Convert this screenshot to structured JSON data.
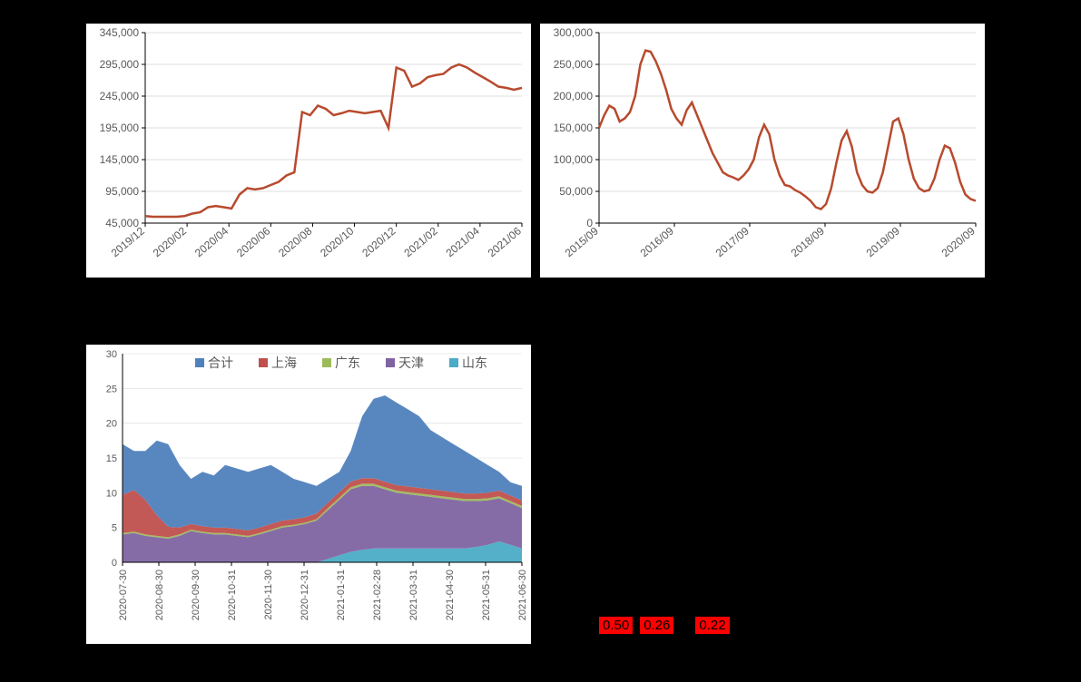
{
  "chart1": {
    "type": "line",
    "title": "",
    "line_color": "#b84a2e",
    "line_width": 2.5,
    "background_color": "#ffffff",
    "grid_color": "#bfbfbf",
    "axis_color": "#000000",
    "tick_fontsize": 12,
    "tick_color": "#595959",
    "ylim": [
      45000,
      345000
    ],
    "ytick_step": 50000,
    "ytick_labels": [
      "45,000",
      "95,000",
      "145,000",
      "195,000",
      "245,000",
      "295,000",
      "345,000"
    ],
    "x_labels": [
      "2019/12",
      "2020/02",
      "2020/04",
      "2020/06",
      "2020/08",
      "2020/10",
      "2020/12",
      "2021/02",
      "2021/04",
      "2021/06"
    ],
    "values": [
      56000,
      55000,
      55000,
      55000,
      55000,
      56000,
      60000,
      62000,
      70000,
      72000,
      70000,
      68000,
      90000,
      100000,
      98000,
      100000,
      105000,
      110000,
      120000,
      125000,
      220000,
      215000,
      230000,
      225000,
      215000,
      218000,
      222000,
      220000,
      218000,
      220000,
      222000,
      195000,
      290000,
      285000,
      260000,
      265000,
      275000,
      278000,
      280000,
      290000,
      295000,
      290000,
      282000,
      275000,
      268000,
      260000,
      258000,
      255000,
      258000
    ]
  },
  "chart2": {
    "type": "line",
    "title": "",
    "line_color": "#b84a2e",
    "line_width": 2.5,
    "background_color": "#ffffff",
    "grid_color": "#bfbfbf",
    "axis_color": "#000000",
    "tick_fontsize": 12,
    "tick_color": "#595959",
    "ylim": [
      0,
      300000
    ],
    "ytick_step": 50000,
    "ytick_labels": [
      "0",
      "50,000",
      "100,000",
      "150,000",
      "200,000",
      "250,000",
      "300,000"
    ],
    "x_labels": [
      "2015/09",
      "2016/09",
      "2017/09",
      "2018/09",
      "2019/09",
      "2020/09"
    ],
    "values": [
      150000,
      170000,
      185000,
      180000,
      160000,
      165000,
      175000,
      200000,
      250000,
      272000,
      270000,
      255000,
      235000,
      210000,
      180000,
      165000,
      155000,
      178000,
      190000,
      170000,
      150000,
      130000,
      110000,
      95000,
      80000,
      75000,
      72000,
      68000,
      75000,
      85000,
      100000,
      135000,
      155000,
      140000,
      100000,
      75000,
      60000,
      58000,
      52000,
      48000,
      42000,
      35000,
      25000,
      22000,
      30000,
      55000,
      95000,
      130000,
      145000,
      120000,
      80000,
      60000,
      50000,
      48000,
      55000,
      80000,
      120000,
      160000,
      165000,
      140000,
      100000,
      70000,
      55000,
      50000,
      52000,
      70000,
      100000,
      122000,
      118000,
      95000,
      65000,
      45000,
      38000,
      35000
    ]
  },
  "chart3": {
    "type": "area",
    "background_color": "#ffffff",
    "grid_color": "#d9d9d9",
    "axis_color": "#000000",
    "tick_fontsize": 11,
    "tick_color": "#595959",
    "legend_fontsize": 14,
    "ylim": [
      0,
      30
    ],
    "ytick_step": 5,
    "ytick_labels": [
      "0",
      "5",
      "10",
      "15",
      "20",
      "25",
      "30"
    ],
    "x_labels": [
      "2020-07-30",
      "2020-08-30",
      "2020-09-30",
      "2020-10-31",
      "2020-11-30",
      "2020-12-31",
      "2021-01-31",
      "2021-02-28",
      "2021-03-31",
      "2021-04-30",
      "2021-05-31",
      "2021-06-30"
    ],
    "legend": [
      {
        "label": "合计",
        "color": "#4f81bd"
      },
      {
        "label": "上海",
        "color": "#c0504d"
      },
      {
        "label": "广东",
        "color": "#9bbb59"
      },
      {
        "label": "天津",
        "color": "#8064a2"
      },
      {
        "label": "山东",
        "color": "#4bacc6"
      }
    ],
    "series": {
      "shandong": [
        0,
        0,
        0,
        0,
        0,
        0,
        0,
        0,
        0,
        0,
        0,
        0,
        0,
        0,
        0,
        0,
        0,
        0,
        0.5,
        1,
        1.5,
        1.8,
        2,
        2,
        2,
        2,
        2,
        2,
        2,
        2,
        2,
        2.2,
        2.5,
        3,
        2.5,
        2
      ],
      "tianjin": [
        4,
        4.2,
        3.8,
        3.6,
        3.4,
        3.8,
        4.5,
        4.2,
        4,
        4,
        3.8,
        3.6,
        4,
        4.5,
        5,
        5.2,
        5.5,
        6,
        7,
        8,
        9,
        9.2,
        9,
        8.5,
        8,
        7.8,
        7.6,
        7.4,
        7.2,
        7,
        6.8,
        6.6,
        6.4,
        6.2,
        6,
        5.8
      ],
      "guangdong": [
        0.2,
        0.2,
        0.2,
        0.2,
        0.2,
        0.2,
        0.2,
        0.2,
        0.2,
        0.2,
        0.2,
        0.2,
        0.2,
        0.2,
        0.2,
        0.2,
        0.2,
        0.2,
        0.3,
        0.3,
        0.3,
        0.3,
        0.3,
        0.3,
        0.3,
        0.3,
        0.3,
        0.3,
        0.3,
        0.3,
        0.3,
        0.3,
        0.3,
        0.3,
        0.3,
        0.3
      ],
      "shanghai": [
        5.5,
        6,
        5,
        3,
        1.5,
        1,
        0.8,
        0.8,
        0.8,
        0.8,
        0.8,
        0.8,
        0.8,
        0.8,
        0.8,
        0.8,
        0.8,
        0.8,
        0.8,
        0.8,
        0.8,
        0.8,
        0.8,
        0.8,
        0.8,
        0.8,
        0.8,
        0.8,
        0.8,
        0.8,
        0.8,
        0.8,
        0.8,
        0.8,
        0.8,
        0.8
      ],
      "total": [
        17,
        16,
        16,
        17.5,
        17,
        14,
        12,
        13,
        12.5,
        14,
        13.5,
        13,
        13.5,
        14,
        13,
        12,
        11.5,
        11,
        12,
        13,
        16,
        21,
        23.5,
        24,
        23,
        22,
        21,
        19,
        18,
        17,
        16,
        15,
        14,
        13,
        11.5,
        11
      ]
    }
  },
  "bottom_values": {
    "items": [
      {
        "text": "0.50",
        "highlight": true
      },
      {
        "text": "0.26",
        "highlight": true
      },
      {
        "text": "",
        "highlight": false
      },
      {
        "text": "0.22",
        "highlight": true
      }
    ],
    "highlight_bg": "#ff0000",
    "font_size": 15
  }
}
